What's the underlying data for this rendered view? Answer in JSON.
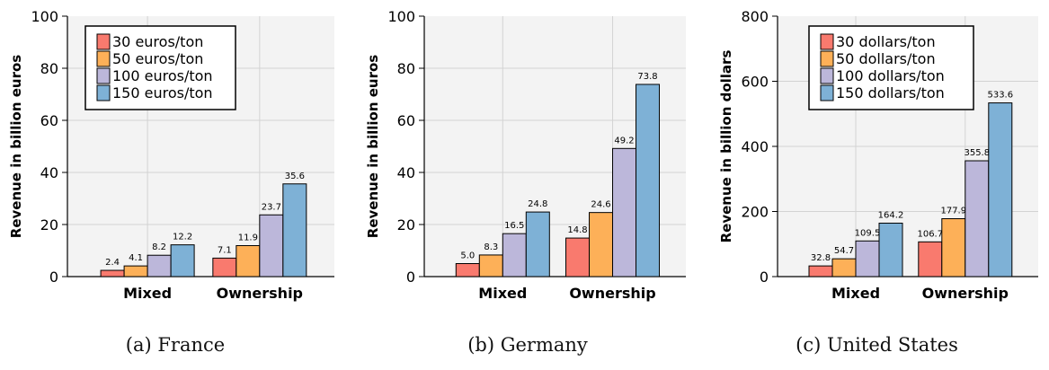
{
  "colors": [
    "#f97a6e",
    "#fdb058",
    "#bcb7da",
    "#7eb1d6"
  ],
  "chart_data": [
    {
      "type": "bar",
      "caption": "(a) France",
      "ylabel": "Revenue in billion euros",
      "ylim": [
        0,
        100
      ],
      "yticks": [
        "0",
        "20",
        "40",
        "60",
        "80",
        "100"
      ],
      "yticks_values": [
        0,
        20,
        40,
        60,
        80,
        100
      ],
      "grid": true,
      "legend_position": "top-left",
      "categories": [
        "Mixed",
        "Ownership"
      ],
      "series": [
        {
          "name": "30 euros/ton",
          "values": [
            2.4,
            7.1
          ],
          "labels": [
            "2.4",
            "7.1"
          ]
        },
        {
          "name": "50 euros/ton",
          "values": [
            4.1,
            11.9
          ],
          "labels": [
            "4.1",
            "11.9"
          ]
        },
        {
          "name": "100 euros/ton",
          "values": [
            8.2,
            23.7
          ],
          "labels": [
            "8.2",
            "23.7"
          ]
        },
        {
          "name": "150 euros/ton",
          "values": [
            12.2,
            35.6
          ],
          "labels": [
            "12.2",
            "35.6"
          ]
        }
      ]
    },
    {
      "type": "bar",
      "caption": "(b) Germany",
      "ylabel": "Revenue in billion euros",
      "ylim": [
        0,
        100
      ],
      "yticks": [
        "0",
        "20",
        "40",
        "60",
        "80",
        "100"
      ],
      "yticks_values": [
        0,
        20,
        40,
        60,
        80,
        100
      ],
      "grid": true,
      "legend_position": "none",
      "categories": [
        "Mixed",
        "Ownership"
      ],
      "series": [
        {
          "name": "30 euros/ton",
          "values": [
            5.0,
            14.8
          ],
          "labels": [
            "5.0",
            "14.8"
          ]
        },
        {
          "name": "50 euros/ton",
          "values": [
            8.3,
            24.6
          ],
          "labels": [
            "8.3",
            "24.6"
          ]
        },
        {
          "name": "100 euros/ton",
          "values": [
            16.5,
            49.2
          ],
          "labels": [
            "16.5",
            "49.2"
          ]
        },
        {
          "name": "150 euros/ton",
          "values": [
            24.8,
            73.8
          ],
          "labels": [
            "24.8",
            "73.8"
          ]
        }
      ]
    },
    {
      "type": "bar",
      "caption": "(c) United States",
      "ylabel": "Revenue in billion dollars",
      "ylim": [
        0,
        800
      ],
      "yticks": [
        "0",
        "200",
        "400",
        "600",
        "800"
      ],
      "yticks_values": [
        0,
        200,
        400,
        600,
        800
      ],
      "grid": true,
      "legend_position": "top-left",
      "categories": [
        "Mixed",
        "Ownership"
      ],
      "series": [
        {
          "name": "30 dollars/ton",
          "values": [
            32.8,
            106.7
          ],
          "labels": [
            "32.8",
            "106.7"
          ]
        },
        {
          "name": "50 dollars/ton",
          "values": [
            54.7,
            177.9
          ],
          "labels": [
            "54.7",
            "177.9"
          ]
        },
        {
          "name": "100 dollars/ton",
          "values": [
            109.5,
            355.8
          ],
          "labels": [
            "109.5",
            "355.8"
          ]
        },
        {
          "name": "150 dollars/ton",
          "values": [
            164.2,
            533.6
          ],
          "labels": [
            "164.2",
            "533.6"
          ]
        }
      ]
    }
  ]
}
